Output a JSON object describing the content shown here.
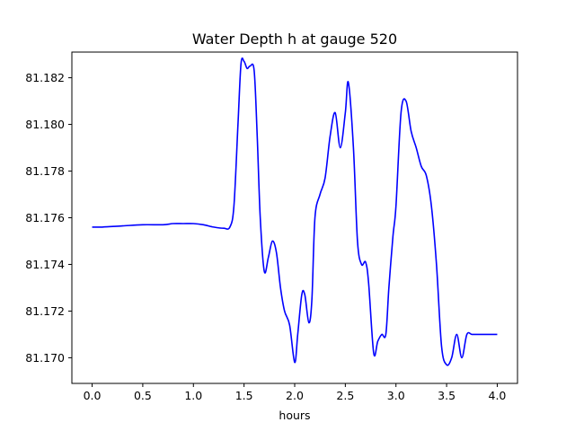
{
  "chart_data": {
    "type": "line",
    "title": "Water Depth h at gauge 520",
    "xlabel": "hours",
    "ylabel": "",
    "xlim": [
      -0.2,
      4.2
    ],
    "ylim": [
      81.1689,
      81.1831
    ],
    "grid": false,
    "x_ticks": [
      {
        "value": 0.0,
        "label": "0.0"
      },
      {
        "value": 0.5,
        "label": "0.5"
      },
      {
        "value": 1.0,
        "label": "1.0"
      },
      {
        "value": 1.5,
        "label": "1.5"
      },
      {
        "value": 2.0,
        "label": "2.0"
      },
      {
        "value": 2.5,
        "label": "2.5"
      },
      {
        "value": 3.0,
        "label": "3.0"
      },
      {
        "value": 3.5,
        "label": "3.5"
      },
      {
        "value": 4.0,
        "label": "4.0"
      }
    ],
    "y_ticks": [
      {
        "value": 81.17,
        "label": "81.170"
      },
      {
        "value": 81.172,
        "label": "81.172"
      },
      {
        "value": 81.174,
        "label": "81.174"
      },
      {
        "value": 81.176,
        "label": "81.176"
      },
      {
        "value": 81.178,
        "label": "81.178"
      },
      {
        "value": 81.18,
        "label": "81.180"
      },
      {
        "value": 81.182,
        "label": "81.182"
      }
    ],
    "series": [
      {
        "color": "#0000ff",
        "x": [
          0.0,
          0.1,
          0.3,
          0.5,
          0.7,
          0.8,
          0.9,
          1.0,
          1.1,
          1.2,
          1.3,
          1.36,
          1.4,
          1.44,
          1.47,
          1.5,
          1.53,
          1.56,
          1.6,
          1.63,
          1.66,
          1.7,
          1.74,
          1.78,
          1.82,
          1.86,
          1.9,
          1.95,
          2.0,
          2.03,
          2.07,
          2.1,
          2.14,
          2.17,
          2.2,
          2.25,
          2.3,
          2.35,
          2.4,
          2.45,
          2.5,
          2.53,
          2.58,
          2.62,
          2.66,
          2.7,
          2.73,
          2.78,
          2.82,
          2.86,
          2.9,
          2.93,
          2.97,
          3.0,
          3.05,
          3.1,
          3.15,
          3.2,
          3.25,
          3.3,
          3.35,
          3.4,
          3.45,
          3.5,
          3.55,
          3.6,
          3.65,
          3.7,
          3.75,
          3.8,
          3.85,
          3.9,
          3.95,
          4.0
        ],
        "y": [
          81.1756,
          81.1756,
          81.17565,
          81.1757,
          81.1757,
          81.17575,
          81.17575,
          81.17575,
          81.1757,
          81.1756,
          81.17555,
          81.1756,
          81.1765,
          81.18,
          81.1826,
          81.1827,
          81.1824,
          81.1825,
          81.1823,
          81.1795,
          81.176,
          81.1737,
          81.1743,
          81.175,
          81.1745,
          81.173,
          81.172,
          81.1714,
          81.1698,
          81.171,
          81.1727,
          81.1727,
          81.1715,
          81.1725,
          81.176,
          81.177,
          81.1777,
          81.1795,
          81.1805,
          81.179,
          81.1805,
          81.1818,
          81.179,
          81.175,
          81.174,
          81.1741,
          81.1732,
          81.1702,
          81.1707,
          81.171,
          81.171,
          81.173,
          81.1752,
          81.1765,
          81.1805,
          81.181,
          81.1797,
          81.179,
          81.1782,
          81.1778,
          81.1765,
          81.174,
          81.1705,
          81.1697,
          81.17,
          81.171,
          81.17,
          81.171,
          81.171,
          81.171,
          81.171,
          81.171,
          81.171,
          81.171
        ]
      }
    ]
  }
}
